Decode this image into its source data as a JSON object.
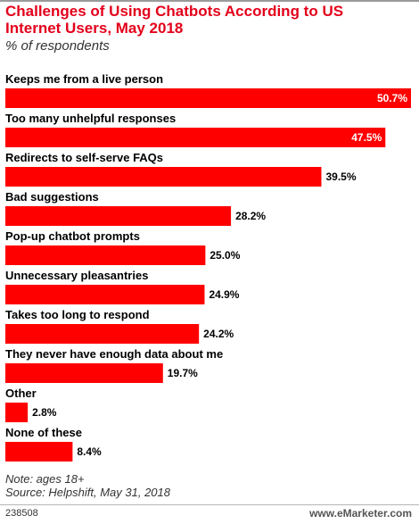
{
  "chart_data": {
    "type": "bar",
    "orientation": "horizontal",
    "title": "Challenges of Using Chatbots According to US Internet Users, May 2018",
    "subtitle": "% of respondents",
    "categories": [
      "Keeps me from a live person",
      "Too many unhelpful responses",
      "Redirects to self-serve FAQs",
      "Bad suggestions",
      "Pop-up chatbot prompts",
      "Unnecessary pleasantries",
      "Takes too long to respond",
      "They never have enough data about me",
      "Other",
      "None of these"
    ],
    "values": [
      50.7,
      47.5,
      39.5,
      28.2,
      25.0,
      24.9,
      24.2,
      19.7,
      2.8,
      8.4
    ],
    "value_labels": [
      "50.7%",
      "47.5%",
      "39.5%",
      "28.2%",
      "25.0%",
      "24.9%",
      "24.2%",
      "19.7%",
      "2.8%",
      "8.4%"
    ],
    "xlim": [
      0,
      50.7
    ],
    "grid": false,
    "legend": "none",
    "bar_color": "#ff0000"
  },
  "footer": {
    "note": "Note: ages 18+",
    "source": "Source: Helpshift, May 31, 2018",
    "chart_id": "238508",
    "brand": "www.eMarketer.com"
  },
  "colors": {
    "title": "#e3001b",
    "bar": "#ff0000",
    "text": "#000000"
  }
}
